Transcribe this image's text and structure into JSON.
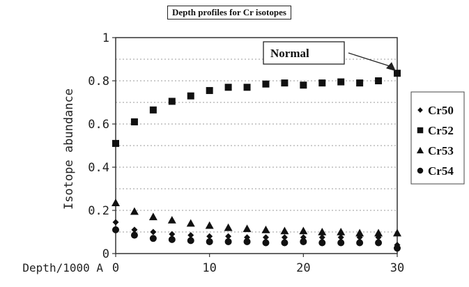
{
  "chart_data": {
    "type": "scatter",
    "title": "Depth profiles for Cr isotopes",
    "xlabel": "Depth/1000 A",
    "ylabel": "Isotope abundance",
    "xlim": [
      0,
      30
    ],
    "ylim": [
      0,
      1
    ],
    "xticks": [
      "0",
      "10",
      "20",
      "30"
    ],
    "yticks": [
      "0",
      "0.2",
      "0.4",
      "0.6",
      "0.8",
      "1"
    ],
    "grid": "horizontal dotted",
    "legend_position": "right",
    "x": [
      0,
      2,
      4,
      6,
      8,
      10,
      12,
      14,
      16,
      18,
      20,
      22,
      24,
      26,
      28,
      30
    ],
    "series": [
      {
        "name": "Cr50",
        "marker": "diamond",
        "values": [
          0.145,
          0.11,
          0.1,
          0.09,
          0.085,
          0.08,
          0.08,
          0.075,
          0.075,
          0.075,
          0.075,
          0.075,
          0.075,
          0.075,
          0.075,
          0.04
        ]
      },
      {
        "name": "Cr52",
        "marker": "square",
        "values": [
          0.51,
          0.61,
          0.665,
          0.705,
          0.73,
          0.755,
          0.77,
          0.77,
          0.785,
          0.79,
          0.78,
          0.79,
          0.795,
          0.79,
          0.8,
          0.835
        ]
      },
      {
        "name": "Cr53",
        "marker": "triangle",
        "values": [
          0.235,
          0.195,
          0.17,
          0.155,
          0.14,
          0.13,
          0.12,
          0.115,
          0.11,
          0.105,
          0.105,
          0.1,
          0.1,
          0.095,
          0.095,
          0.095
        ]
      },
      {
        "name": "Cr54",
        "marker": "circle",
        "values": [
          0.11,
          0.085,
          0.07,
          0.065,
          0.06,
          0.055,
          0.055,
          0.055,
          0.05,
          0.05,
          0.055,
          0.05,
          0.05,
          0.05,
          0.05,
          0.025
        ]
      }
    ],
    "annotation": {
      "text": "Normal",
      "x": 30,
      "y": 0.835
    }
  }
}
